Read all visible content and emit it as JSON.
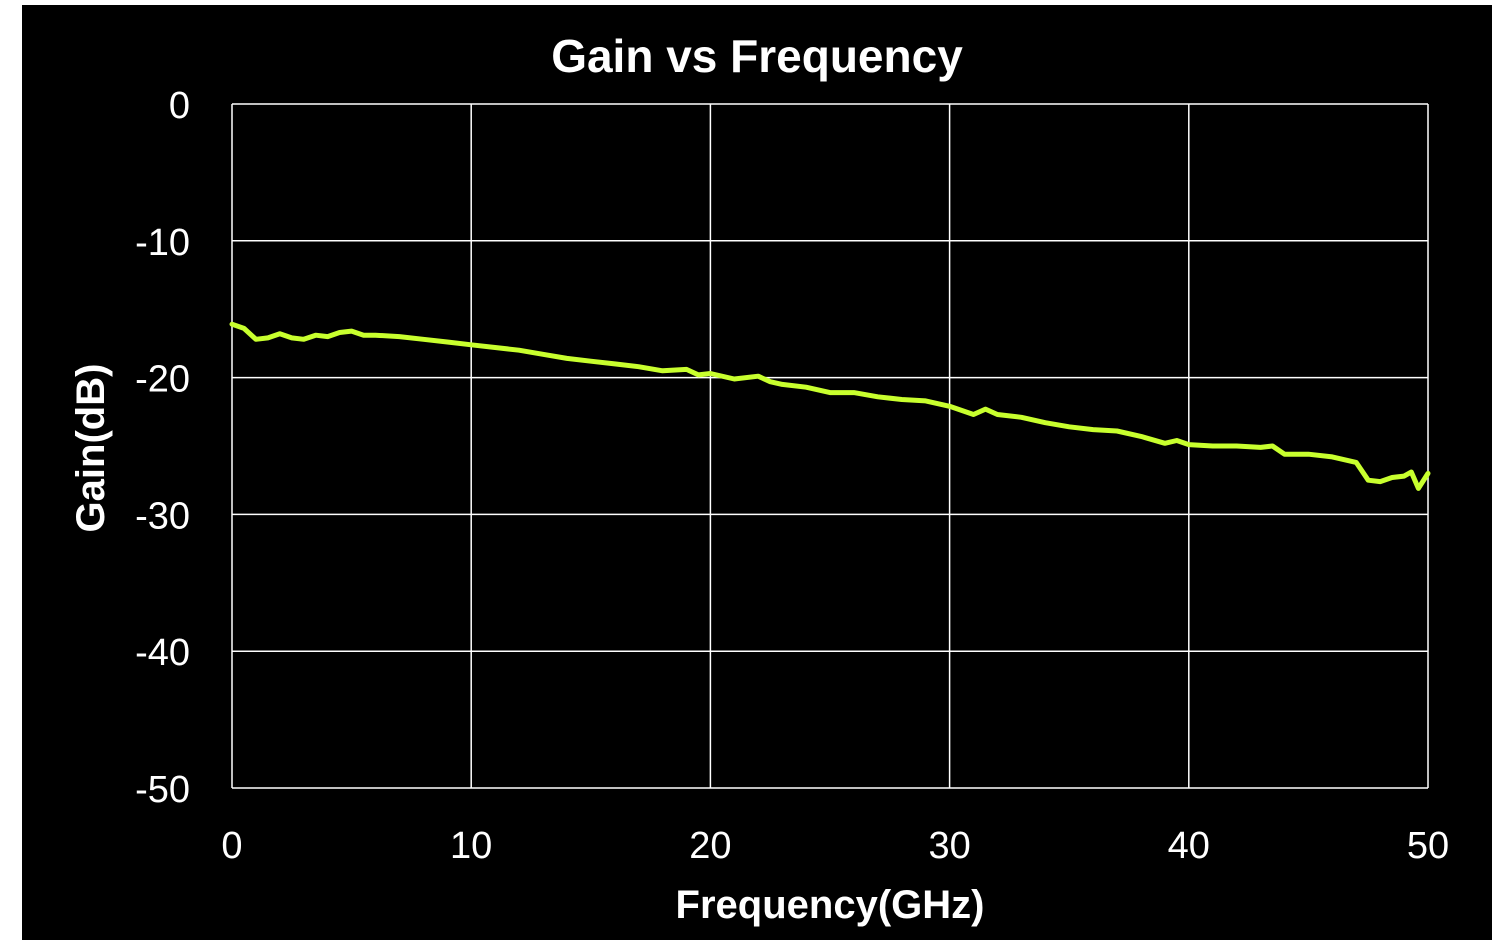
{
  "chart_data": {
    "type": "line",
    "title": "Gain vs Frequency",
    "xlabel": "Frequency(GHz)",
    "ylabel": "Gain(dB)",
    "xlim": [
      0,
      50
    ],
    "ylim": [
      -50,
      0
    ],
    "x_ticks": [
      0,
      10,
      20,
      30,
      40,
      50
    ],
    "y_ticks": [
      0,
      -10,
      -20,
      -30,
      -40,
      -50
    ],
    "grid": true,
    "background": "#000000",
    "grid_color": "#ffffff",
    "series": [
      {
        "color": "#c8ff2e",
        "x": [
          0,
          0.5,
          1,
          1.5,
          2,
          2.5,
          3,
          3.5,
          4,
          4.5,
          5,
          5.5,
          6,
          7,
          8,
          9,
          10,
          11,
          12,
          13,
          14,
          15,
          16,
          17,
          18,
          19,
          19.5,
          20,
          21,
          22,
          22.5,
          23,
          24,
          25,
          26,
          27,
          28,
          29,
          30,
          31,
          31.5,
          32,
          33,
          34,
          35,
          36,
          37,
          38,
          39,
          39.5,
          40,
          41,
          42,
          43,
          43.5,
          44,
          45,
          46,
          47,
          47.5,
          48,
          48.5,
          49,
          49.3,
          49.6,
          50
        ],
        "y": [
          -16.1,
          -16.4,
          -17.2,
          -17.1,
          -16.8,
          -17.1,
          -17.2,
          -16.9,
          -17.0,
          -16.7,
          -16.6,
          -16.9,
          -16.9,
          -17.0,
          -17.2,
          -17.4,
          -17.6,
          -17.8,
          -18.0,
          -18.3,
          -18.6,
          -18.8,
          -19.0,
          -19.2,
          -19.5,
          -19.4,
          -19.8,
          -19.7,
          -20.1,
          -19.9,
          -20.3,
          -20.5,
          -20.7,
          -21.1,
          -21.1,
          -21.4,
          -21.6,
          -21.7,
          -22.1,
          -22.7,
          -22.3,
          -22.7,
          -22.9,
          -23.3,
          -23.6,
          -23.8,
          -23.9,
          -24.3,
          -24.8,
          -24.6,
          -24.9,
          -25.0,
          -25.0,
          -25.1,
          -25.0,
          -25.6,
          -25.6,
          -25.8,
          -26.2,
          -27.5,
          -27.6,
          -27.3,
          -27.2,
          -26.9,
          -28.1,
          -27.0
        ]
      }
    ]
  }
}
